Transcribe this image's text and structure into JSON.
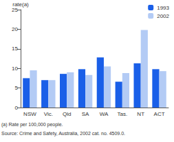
{
  "chart_data": {
    "type": "bar",
    "ylabel": "rate(a)",
    "categories": [
      "NSW",
      "Vic.",
      "Qld",
      "SA",
      "WA",
      "Tas.",
      "NT",
      "ACT"
    ],
    "series": [
      {
        "name": "1993",
        "color": "#1a5fe8",
        "values": [
          7.5,
          7.0,
          8.6,
          9.8,
          12.8,
          6.6,
          11.3,
          9.8
        ]
      },
      {
        "name": "2002",
        "color": "#b3cbf5",
        "values": [
          9.5,
          7.0,
          9.0,
          8.3,
          10.5,
          8.8,
          19.8,
          9.3
        ]
      }
    ],
    "ylim": [
      0,
      25
    ],
    "yticks": [
      0,
      5,
      10,
      15,
      20,
      25
    ],
    "grid": false,
    "legend": "top-right",
    "annotations": [
      "(a) Rate per 100,000 people.",
      "Source: Crime and Safety, Australia, 2002 cat. no. 4509.0."
    ]
  }
}
